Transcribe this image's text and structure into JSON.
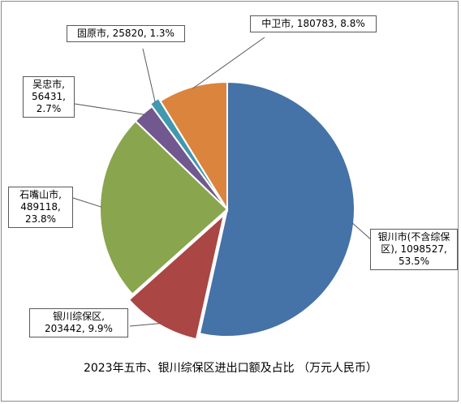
{
  "chart_data": {
    "type": "pie",
    "title": "2023年五市、银川综保区进出口额及占比 （万元人民币）",
    "slices": [
      {
        "name": "银川市(不含综保区)",
        "value": 1098527,
        "percent": "53.5%",
        "color": "#4572A7",
        "label_lines": [
          "银川市(不含综保",
          "区), 1098527,",
          "53.5%"
        ]
      },
      {
        "name": "银川综保区",
        "value": 203442,
        "percent": "9.9%",
        "color": "#AA4643",
        "label_lines": [
          "银川综保区,",
          "203442, 9.9%"
        ]
      },
      {
        "name": "石嘴山市",
        "value": 489118,
        "percent": "23.8%",
        "color": "#89A54E",
        "label_lines": [
          "石嘴山市,",
          "489118,",
          "23.8%"
        ]
      },
      {
        "name": "吴忠市",
        "value": 56431,
        "percent": "2.7%",
        "color": "#71588F",
        "label_lines": [
          "吴忠市,",
          "56431,",
          "2.7%"
        ]
      },
      {
        "name": "固原市",
        "value": 25820,
        "percent": "1.3%",
        "color": "#4198AF",
        "label_lines": [
          "固原市, 25820, 1.3%"
        ]
      },
      {
        "name": "中卫市",
        "value": 180783,
        "percent": "8.8%",
        "color": "#DB843D",
        "label_lines": [
          "中卫市, 180783, 8.8%"
        ]
      }
    ]
  }
}
